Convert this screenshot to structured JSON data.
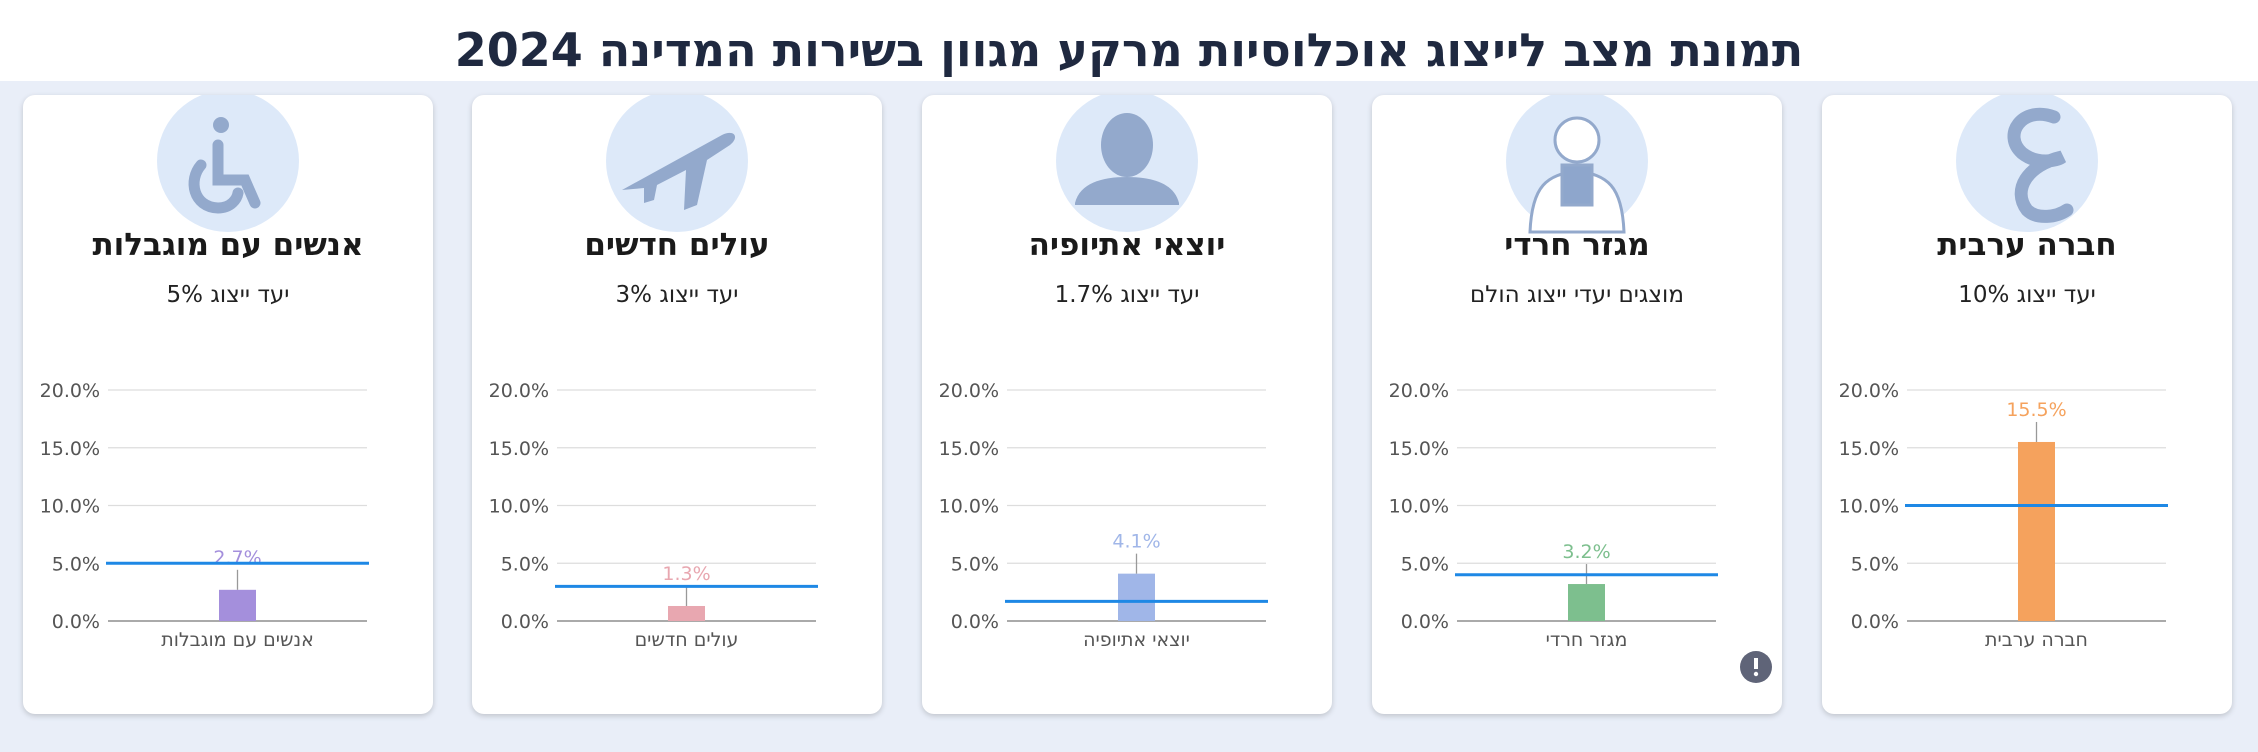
{
  "title": "תמונת מצב לייצוג אוכלוסיות מרקע מגוון בשירות המדינה 2024",
  "chart_data": [
    {
      "type": "bar",
      "title": "חברה ערבית",
      "subtitle": "יעד ייצוג 10%",
      "categories": [
        "חברה ערבית"
      ],
      "values": [
        15.5
      ],
      "value_labels": [
        "15.5%"
      ],
      "color": "#f5a25d",
      "target": 10,
      "target_color": "#1e88e5",
      "ylim": [
        0,
        20
      ],
      "yticks": [
        {
          "value": 0,
          "label": "0.0%"
        },
        {
          "value": 5,
          "label": "5.0%"
        },
        {
          "value": 10,
          "label": "10.0%"
        },
        {
          "value": 15,
          "label": "15.0%"
        },
        {
          "value": 20,
          "label": "20.0%"
        }
      ],
      "grid": true
    },
    {
      "type": "bar",
      "title": "מגזר חרדי",
      "subtitle": "מוצגים יעדי ייצוג הולם",
      "categories": [
        "מגזר חרדי"
      ],
      "values": [
        3.2
      ],
      "value_labels": [
        "3.2%"
      ],
      "color": "#7dbf8e",
      "target": 4,
      "target_color": "#1e88e5",
      "ylim": [
        0,
        20
      ],
      "yticks": [
        {
          "value": 0,
          "label": "0.0%"
        },
        {
          "value": 5,
          "label": "5.0%"
        },
        {
          "value": 10,
          "label": "10.0%"
        },
        {
          "value": 15,
          "label": "15.0%"
        },
        {
          "value": 20,
          "label": "20.0%"
        }
      ],
      "grid": true
    },
    {
      "type": "bar",
      "title": "יוצאי אתיופיה",
      "subtitle": "יעד ייצוג 1.7%",
      "categories": [
        "יוצאי אתיופיה"
      ],
      "values": [
        4.1
      ],
      "value_labels": [
        "4.1%"
      ],
      "color": "#a0b6e8",
      "target": 1.7,
      "target_color": "#1e88e5",
      "ylim": [
        0,
        20
      ],
      "yticks": [
        {
          "value": 0,
          "label": "0.0%"
        },
        {
          "value": 5,
          "label": "5.0%"
        },
        {
          "value": 10,
          "label": "10.0%"
        },
        {
          "value": 15,
          "label": "15.0%"
        },
        {
          "value": 20,
          "label": "20.0%"
        }
      ],
      "grid": true
    },
    {
      "type": "bar",
      "title": "עולים חדשים",
      "subtitle": "יעד ייצוג 3%",
      "categories": [
        "עולים חדשים"
      ],
      "values": [
        1.3
      ],
      "value_labels": [
        "1.3%"
      ],
      "color": "#e8a7b0",
      "target": 3,
      "target_color": "#1e88e5",
      "ylim": [
        0,
        20
      ],
      "yticks": [
        {
          "value": 0,
          "label": "0.0%"
        },
        {
          "value": 5,
          "label": "5.0%"
        },
        {
          "value": 10,
          "label": "10.0%"
        },
        {
          "value": 15,
          "label": "15.0%"
        },
        {
          "value": 20,
          "label": "20.0%"
        }
      ],
      "grid": true
    },
    {
      "type": "bar",
      "title": "אנשים עם מוגבלות",
      "subtitle": "יעד ייצוג 5%",
      "categories": [
        "אנשים עם מוגבלות"
      ],
      "values": [
        2.7
      ],
      "value_labels": [
        "2.7%"
      ],
      "color": "#a48fdc",
      "target": 5,
      "target_color": "#1e88e5",
      "ylim": [
        0,
        20
      ],
      "yticks": [
        {
          "value": 0,
          "label": "0.0%"
        },
        {
          "value": 5,
          "label": "5.0%"
        },
        {
          "value": 10,
          "label": "10.0%"
        },
        {
          "value": 15,
          "label": "15.0%"
        },
        {
          "value": 20,
          "label": "20.0%"
        }
      ],
      "grid": true
    }
  ]
}
